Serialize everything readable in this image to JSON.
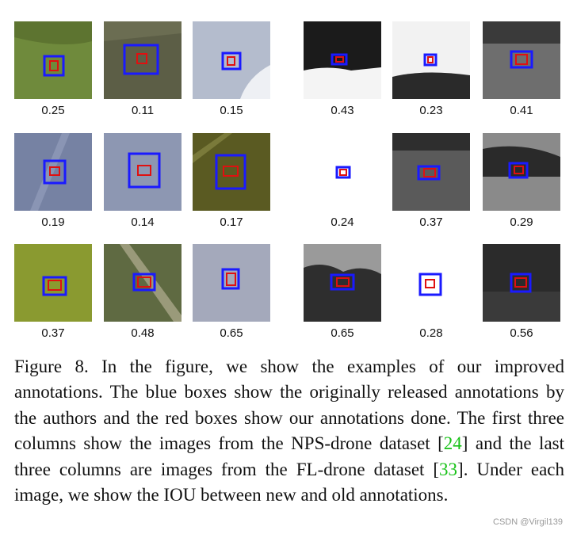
{
  "figure": {
    "tiles": [
      {
        "iou": "0.25",
        "bg": "#6f8a3c",
        "kind": "grass"
      },
      {
        "iou": "0.11",
        "bg": "#5c5e46",
        "kind": "dark-field"
      },
      {
        "iou": "0.15",
        "bg": "#b4bccd",
        "kind": "sky-cloud"
      },
      {
        "iou": "0.43",
        "bg": "#1b1b1b",
        "kind": "bw-snow"
      },
      {
        "iou": "0.23",
        "bg": "#f2f2f2",
        "kind": "bw-white"
      },
      {
        "iou": "0.41",
        "bg": "#6e6e6e",
        "kind": "bw-field"
      },
      {
        "iou": "0.19",
        "bg": "#7682a3",
        "kind": "sky"
      },
      {
        "iou": "0.14",
        "bg": "#8d97b2",
        "kind": "sky"
      },
      {
        "iou": "0.17",
        "bg": "#5a5a22",
        "kind": "olive"
      },
      {
        "iou": "0.24",
        "bg": "#ffffff",
        "kind": "bw-white"
      },
      {
        "iou": "0.37",
        "bg": "#5a5a5a",
        "kind": "bw-field"
      },
      {
        "iou": "0.29",
        "bg": "#8a8a8a",
        "kind": "bw-trees"
      },
      {
        "iou": "0.37",
        "bg": "#8a9a30",
        "kind": "grass"
      },
      {
        "iou": "0.48",
        "bg": "#5f6a42",
        "kind": "path"
      },
      {
        "iou": "0.65",
        "bg": "#a4a9bb",
        "kind": "sky"
      },
      {
        "iou": "0.65",
        "bg": "#2e2e2e",
        "kind": "bw-trees"
      },
      {
        "iou": "0.28",
        "bg": "#ffffff",
        "kind": "bw-white"
      },
      {
        "iou": "0.56",
        "bg": "#2b2b2b",
        "kind": "bw-dark"
      }
    ]
  },
  "caption": {
    "part1": "Figure 8. In the figure, we show the examples of our improved annotations. The blue boxes show the originally released annotations by the authors and the red boxes show our annotations done. The first three columns show the images from the NPS-drone dataset [",
    "ref1": "24",
    "part2": "] and the last three columns are images from the FL-drone dataset [",
    "ref2": "33",
    "part3": "]. Under each image, we show the IOU between new and old annotations."
  },
  "watermark": "CSDN @Virgil139",
  "colors": {
    "blue_box": "#1a1aff",
    "red_box": "#e01010",
    "ref": "#19c219"
  }
}
